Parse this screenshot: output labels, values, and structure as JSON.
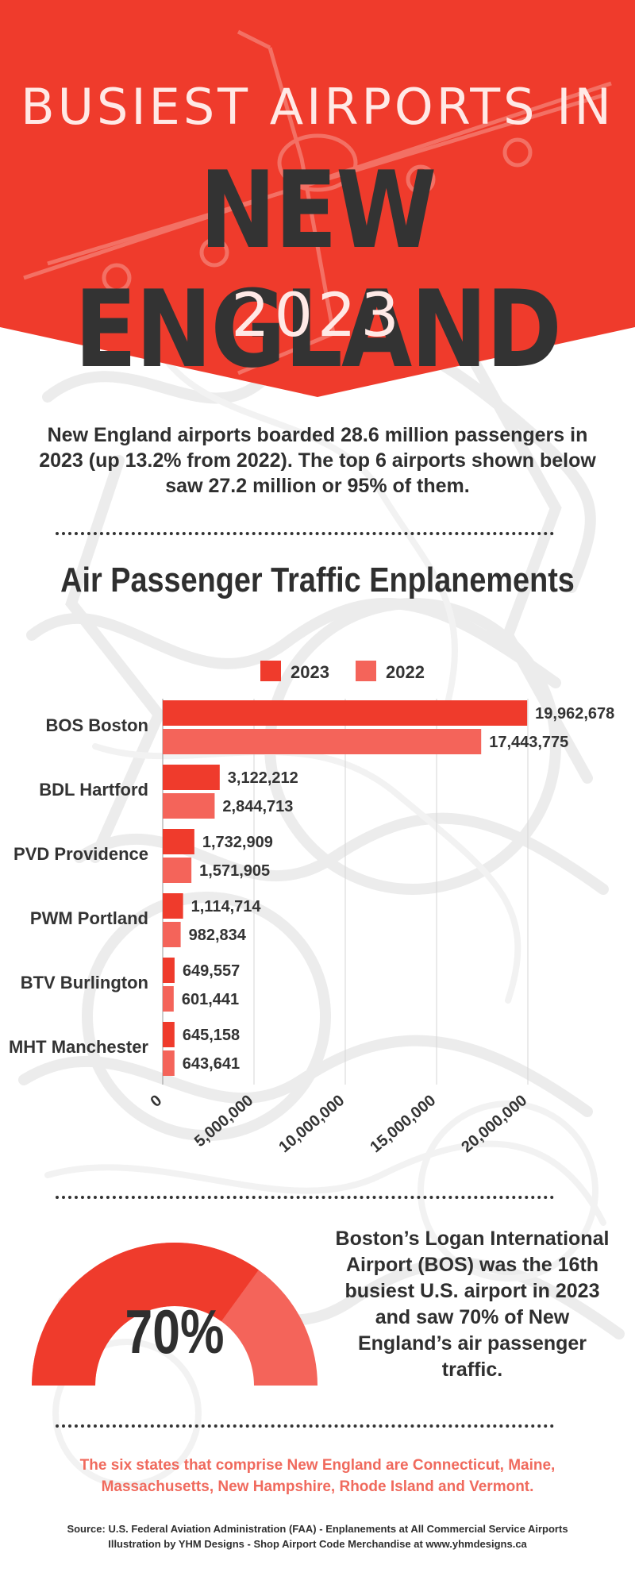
{
  "colors": {
    "red": "#ef3b2c",
    "light_red": "#f4645a",
    "dark": "#333333",
    "pink_text": "#f06a5d"
  },
  "header": {
    "line1": "BUSIEST AIRPORTS IN",
    "line2": "NEW ENGLAND",
    "line3": "2023"
  },
  "intro": "New England airports boarded 28.6 million passengers in 2023 (up 13.2% from 2022). The top 6 airports shown below saw 27.2 million or 95% of them.",
  "chart_data": {
    "type": "bar",
    "orientation": "horizontal",
    "title": "Air Passenger Traffic Enplanements",
    "categories": [
      "BOS Boston",
      "BDL Hartford",
      "PVD Providence",
      "PWM Portland",
      "BTV Burlington",
      "MHT Manchester"
    ],
    "series": [
      {
        "name": "2023",
        "color": "#ef3b2c",
        "values": [
          19962678,
          3122212,
          1732909,
          1114714,
          649557,
          645158
        ],
        "labels": [
          "19,962,678",
          "3,122,212",
          "1,732,909",
          "1,114,714",
          "649,557",
          "645,158"
        ]
      },
      {
        "name": "2022",
        "color": "#f4645a",
        "values": [
          17443775,
          2844713,
          1571905,
          982834,
          601441,
          643641
        ],
        "labels": [
          "17,443,775",
          "2,844,713",
          "1,571,905",
          "982,834",
          "601,441",
          "643,641"
        ]
      }
    ],
    "xlim": [
      0,
      20000000
    ],
    "xticks": [
      0,
      5000000,
      10000000,
      15000000,
      20000000
    ],
    "xtick_labels": [
      "0",
      "5,000,000",
      "10,000,000",
      "15,000,000",
      "20,000,000"
    ],
    "legend_position": "top-center",
    "grid": true
  },
  "gauge": {
    "value": 70,
    "label": "70%"
  },
  "bos_note": "Boston’s Logan International Airport (BOS) was the 16th busiest U.S. airport in 2023 and saw 70% of New England’s air passenger traffic.",
  "states_note": "The six states that comprise New England are Connecticut, Maine, Massachusetts, New Hampshire, Rhode Island and Vermont.",
  "source_line1": "Source: U.S. Federal Aviation Administration (FAA) - Enplanements at All Commercial Service Airports",
  "source_line2": "Illustration by YHM Designs - Shop Airport Code Merchandise at www.yhmdesigns.ca"
}
